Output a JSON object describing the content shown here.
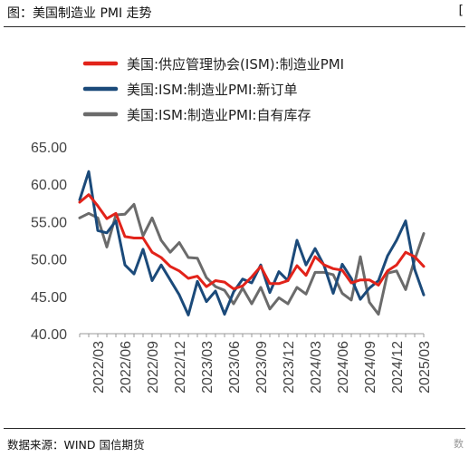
{
  "header": {
    "title": "图：美国制造业 PMI 走势",
    "corner": "["
  },
  "footer": {
    "source": "数据来源：WIND 国信期货",
    "corner": "数"
  },
  "chart_data": {
    "type": "line",
    "title": "",
    "xlabel": "",
    "ylabel": "",
    "ylim": [
      40,
      65
    ],
    "yticks": [
      "40.00",
      "45.00",
      "50.00",
      "55.00",
      "60.00",
      "65.00"
    ],
    "grid": false,
    "legend_position": "top-left",
    "x": [
      "2022/01",
      "2022/02",
      "2022/03",
      "2022/04",
      "2022/05",
      "2022/06",
      "2022/07",
      "2022/08",
      "2022/09",
      "2022/10",
      "2022/11",
      "2022/12",
      "2023/01",
      "2023/02",
      "2023/03",
      "2023/04",
      "2023/05",
      "2023/06",
      "2023/07",
      "2023/08",
      "2023/09",
      "2023/10",
      "2023/11",
      "2023/12",
      "2024/01",
      "2024/02",
      "2024/03",
      "2024/04",
      "2024/05",
      "2024/06",
      "2024/07",
      "2024/08",
      "2024/09",
      "2024/10",
      "2024/11",
      "2024/12",
      "2025/01",
      "2025/02",
      "2025/03"
    ],
    "xticks": [
      "2022/03",
      "2022/06",
      "2022/09",
      "2022/12",
      "2023/03",
      "2023/06",
      "2023/09",
      "2023/12",
      "2024/03",
      "2024/06",
      "2024/09",
      "2024/12",
      "2025/03"
    ],
    "series": [
      {
        "name": "美国:供应管理协会(ISM):制造业PMI",
        "color": "#e2231a",
        "values": [
          57.6,
          58.6,
          57.1,
          55.4,
          56.1,
          53.0,
          52.8,
          52.8,
          50.9,
          50.2,
          49.0,
          48.4,
          47.4,
          47.7,
          46.3,
          47.1,
          46.9,
          46.0,
          46.4,
          47.6,
          49.0,
          46.7,
          46.7,
          47.1,
          49.1,
          47.8,
          50.3,
          49.2,
          48.7,
          48.5,
          46.8,
          47.2,
          47.2,
          46.5,
          48.4,
          49.2,
          50.9,
          50.3,
          49.0
        ]
      },
      {
        "name": "美国:ISM:制造业PMI:新订单",
        "color": "#1b4a7a",
        "values": [
          57.9,
          61.7,
          53.8,
          53.5,
          55.1,
          49.2,
          48.0,
          51.3,
          47.1,
          49.2,
          47.2,
          45.2,
          42.5,
          47.0,
          44.3,
          45.7,
          42.6,
          45.6,
          47.3,
          46.8,
          49.2,
          45.5,
          48.3,
          47.1,
          52.5,
          49.2,
          51.4,
          49.1,
          45.4,
          49.3,
          47.4,
          44.6,
          46.1,
          47.1,
          50.4,
          52.5,
          55.1,
          48.6,
          45.2
        ]
      },
      {
        "name": "美国:ISM:制造业PMI:自有库存",
        "color": "#6b6b6b",
        "values": [
          55.5,
          56.1,
          55.5,
          51.6,
          55.9,
          56.0,
          57.3,
          53.1,
          55.5,
          52.5,
          50.9,
          52.2,
          50.2,
          50.1,
          47.5,
          46.3,
          45.8,
          44.0,
          46.1,
          44.0,
          46.2,
          43.3,
          44.8,
          44.0,
          46.2,
          45.3,
          48.2,
          48.2,
          47.9,
          45.4,
          44.5,
          50.3,
          44.2,
          42.6,
          48.1,
          48.4,
          45.9,
          49.9,
          53.4
        ]
      }
    ]
  }
}
